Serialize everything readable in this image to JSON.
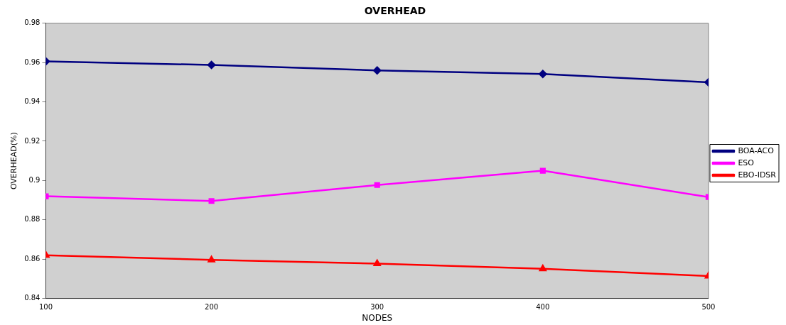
{
  "chart_data": {
    "type": "line",
    "title": "OVERHEAD",
    "xlabel": "NODES",
    "ylabel": "OVERHEAD(%)",
    "x": [
      100,
      200,
      300,
      400,
      500
    ],
    "series": [
      {
        "name": "BOA-ACO",
        "color": "#000080",
        "marker": "diamond",
        "values": [
          0.9606,
          0.9588,
          0.956,
          0.9542,
          0.95
        ]
      },
      {
        "name": "ESO",
        "color": "#ff00ff",
        "marker": "square",
        "values": [
          0.892,
          0.8896,
          0.8977,
          0.905,
          0.8916
        ]
      },
      {
        "name": "EBO-IDSR",
        "color": "#ff0000",
        "marker": "triangle",
        "values": [
          0.862,
          0.8596,
          0.8577,
          0.8551,
          0.8514
        ]
      }
    ],
    "xlim": [
      100,
      500
    ],
    "xticks": [
      100,
      200,
      300,
      400,
      500
    ],
    "ylim": [
      0.84,
      0.98
    ],
    "yticks": [
      0.84,
      0.86,
      0.88,
      0.9,
      0.92,
      0.94,
      0.96,
      0.98
    ],
    "grid": false,
    "legend": "right",
    "line_style": "solid"
  }
}
